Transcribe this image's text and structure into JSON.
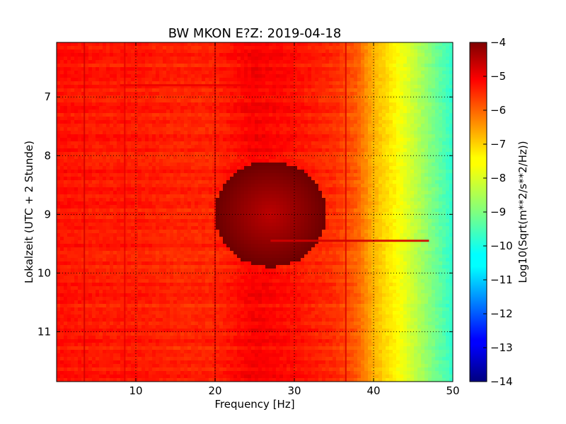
{
  "chart_data": {
    "type": "heatmap",
    "title": "BW MKON E?Z: 2019-04-18",
    "xlabel": "Frequency [Hz]",
    "ylabel": "Lokalzeit (UTC + 2 Stunde)",
    "xlim": [
      0,
      50
    ],
    "ylim": [
      11.85,
      6.07
    ],
    "y_axis_inverted": true,
    "x_ticks": [
      10,
      20,
      30,
      40,
      50
    ],
    "x_tick_labels": [
      "10",
      "20",
      "30",
      "40",
      "50"
    ],
    "y_ticks": [
      7,
      8,
      9,
      10,
      11
    ],
    "y_tick_labels": [
      "7",
      "8",
      "9",
      "10",
      "11"
    ],
    "grid": "dotted",
    "colormap": "jet",
    "colorbar": {
      "label": "Log10(Sqrt(m**2/s**2/Hz))",
      "range": [
        -14,
        -4
      ],
      "ticks": [
        -4,
        -5,
        -6,
        -7,
        -8,
        -9,
        -10,
        -11,
        -12,
        -13,
        -14
      ],
      "tick_labels": [
        "−4",
        "−5",
        "−6",
        "−7",
        "−8",
        "−9",
        "−10",
        "−11",
        "−12",
        "−13",
        "−14"
      ]
    },
    "spectrum_profile": {
      "frequency_hz": [
        0,
        5,
        10,
        15,
        20,
        25,
        30,
        35,
        38,
        40,
        42,
        44,
        46,
        48,
        50
      ],
      "log10_amplitude": [
        -5.4,
        -5.5,
        -5.5,
        -5.6,
        -5.6,
        -5.2,
        -5.4,
        -5.7,
        -6.2,
        -7.0,
        -7.5,
        -8.0,
        -8.6,
        -9.2,
        -9.8
      ]
    },
    "features": [
      {
        "type": "vertical_line",
        "frequency_hz": 3.5,
        "level": -4.8
      },
      {
        "type": "vertical_line",
        "frequency_hz": 8.6,
        "level": -5.0
      },
      {
        "type": "vertical_line",
        "frequency_hz": 20.0,
        "level": -4.8
      },
      {
        "type": "vertical_line",
        "frequency_hz": 36.5,
        "level": -4.9
      },
      {
        "type": "horizontal_band",
        "time": 9.45,
        "f_start": 27,
        "f_end": 47,
        "level": -4.8
      },
      {
        "type": "horizontal_band",
        "time": 6.8,
        "f_start": 8,
        "f_end": 24,
        "level": -5.1
      },
      {
        "type": "high_energy_zone",
        "frequency_center": 27,
        "time_center": 9.0,
        "level": -4.6
      }
    ]
  }
}
